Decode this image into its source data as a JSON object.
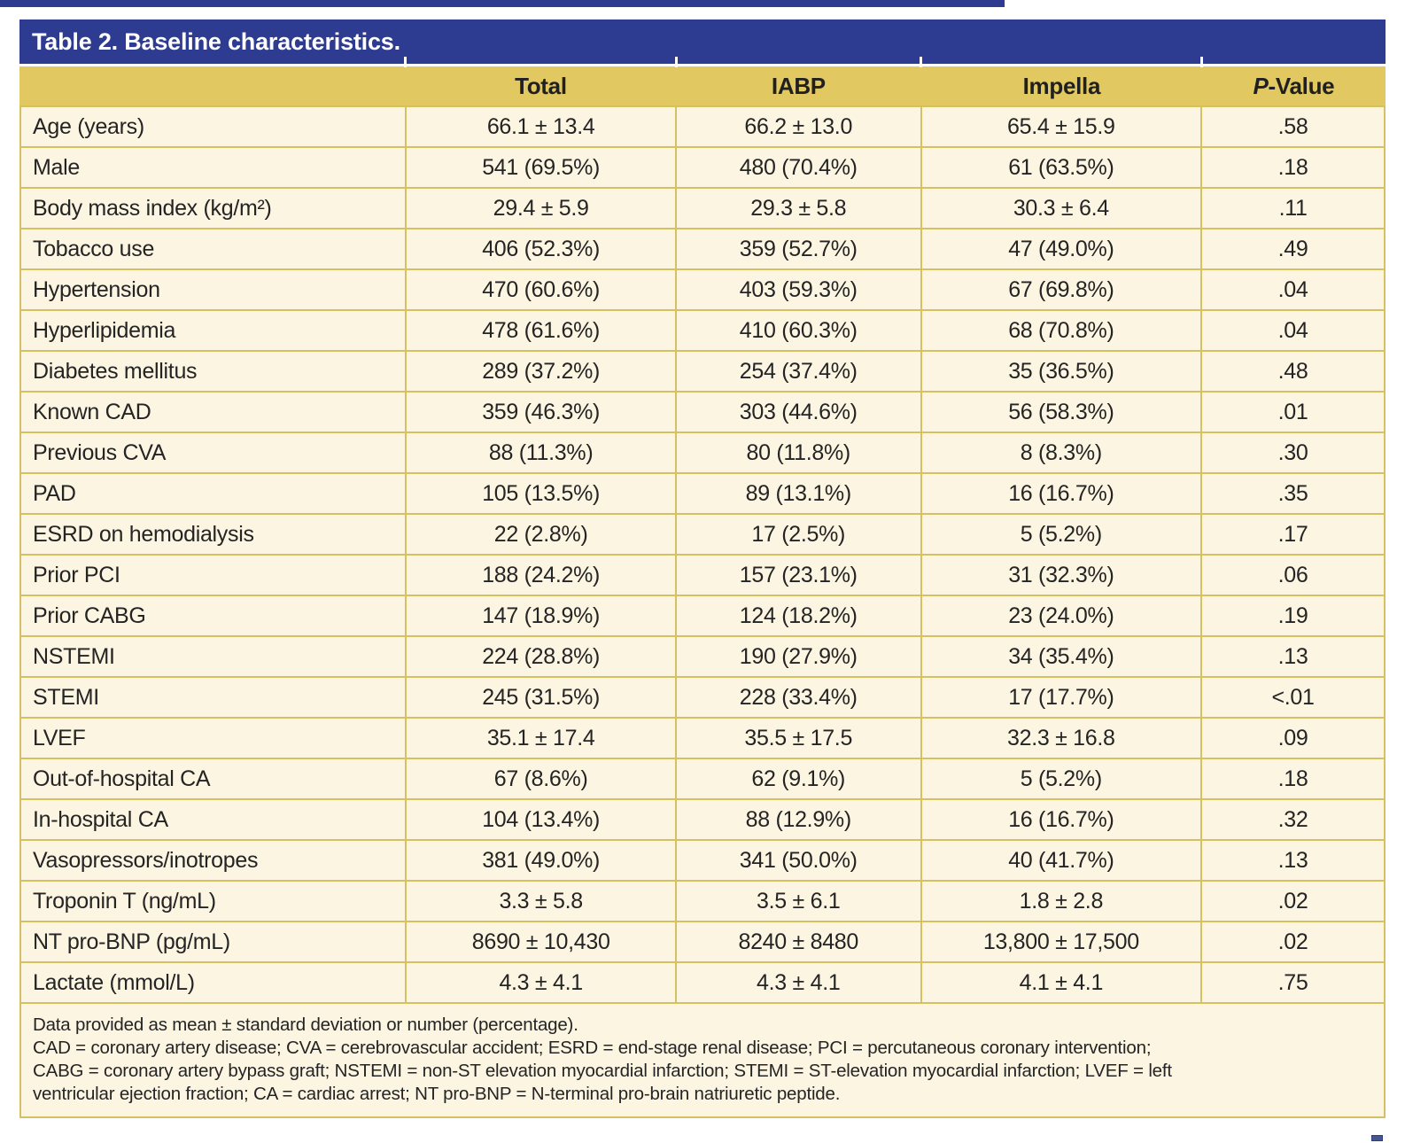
{
  "colors": {
    "accent_blue": "#2d3b90",
    "header_gold": "#e2c860",
    "border_gold": "#d6c162",
    "row_cream": "#fcf5e2"
  },
  "table": {
    "title": "Table 2. Baseline characteristics.",
    "headers": {
      "label": "",
      "total": "Total",
      "iabp": "IABP",
      "impella": "Impella",
      "p_italic": "P",
      "p_rest": "-Value"
    },
    "rows": [
      {
        "label": "Age (years)",
        "total": "66.1 ± 13.4",
        "iabp": "66.2 ± 13.0",
        "impella": "65.4 ± 15.9",
        "p": ".58"
      },
      {
        "label": "Male",
        "total": "541 (69.5%)",
        "iabp": "480 (70.4%)",
        "impella": "61 (63.5%)",
        "p": ".18"
      },
      {
        "label": "Body mass index (kg/m²)",
        "total": "29.4 ± 5.9",
        "iabp": "29.3 ± 5.8",
        "impella": "30.3 ± 6.4",
        "p": ".11"
      },
      {
        "label": "Tobacco use",
        "total": "406 (52.3%)",
        "iabp": "359 (52.7%)",
        "impella": "47 (49.0%)",
        "p": ".49"
      },
      {
        "label": "Hypertension",
        "total": "470 (60.6%)",
        "iabp": "403 (59.3%)",
        "impella": "67 (69.8%)",
        "p": ".04"
      },
      {
        "label": "Hyperlipidemia",
        "total": "478 (61.6%)",
        "iabp": "410 (60.3%)",
        "impella": "68 (70.8%)",
        "p": ".04"
      },
      {
        "label": "Diabetes mellitus",
        "total": "289 (37.2%)",
        "iabp": "254 (37.4%)",
        "impella": "35 (36.5%)",
        "p": ".48"
      },
      {
        "label": "Known CAD",
        "total": "359 (46.3%)",
        "iabp": "303 (44.6%)",
        "impella": "56 (58.3%)",
        "p": ".01"
      },
      {
        "label": "Previous CVA",
        "total": "88 (11.3%)",
        "iabp": "80 (11.8%)",
        "impella": "8 (8.3%)",
        "p": ".30"
      },
      {
        "label": "PAD",
        "total": "105 (13.5%)",
        "iabp": "89 (13.1%)",
        "impella": "16 (16.7%)",
        "p": ".35"
      },
      {
        "label": "ESRD on hemodialysis",
        "total": "22 (2.8%)",
        "iabp": "17 (2.5%)",
        "impella": "5 (5.2%)",
        "p": ".17"
      },
      {
        "label": "Prior PCI",
        "total": "188 (24.2%)",
        "iabp": "157 (23.1%)",
        "impella": "31 (32.3%)",
        "p": ".06"
      },
      {
        "label": "Prior CABG",
        "total": "147 (18.9%)",
        "iabp": "124 (18.2%)",
        "impella": "23 (24.0%)",
        "p": ".19"
      },
      {
        "label": "NSTEMI",
        "total": "224 (28.8%)",
        "iabp": "190 (27.9%)",
        "impella": "34 (35.4%)",
        "p": ".13"
      },
      {
        "label": "STEMI",
        "total": "245 (31.5%)",
        "iabp": "228 (33.4%)",
        "impella": "17 (17.7%)",
        "p": "<.01"
      },
      {
        "label": "LVEF",
        "total": "35.1 ± 17.4",
        "iabp": "35.5 ± 17.5",
        "impella": "32.3 ± 16.8",
        "p": ".09"
      },
      {
        "label": "Out-of-hospital CA",
        "total": "67 (8.6%)",
        "iabp": "62 (9.1%)",
        "impella": "5 (5.2%)",
        "p": ".18"
      },
      {
        "label": "In-hospital CA",
        "total": "104 (13.4%)",
        "iabp": "88 (12.9%)",
        "impella": "16 (16.7%)",
        "p": ".32"
      },
      {
        "label": "Vasopressors/inotropes",
        "total": "381 (49.0%)",
        "iabp": "341 (50.0%)",
        "impella": "40 (41.7%)",
        "p": ".13"
      },
      {
        "label": "Troponin T (ng/mL)",
        "total": "3.3 ± 5.8",
        "iabp": "3.5 ± 6.1",
        "impella": "1.8 ± 2.8",
        "p": ".02"
      },
      {
        "label": "NT pro-BNP (pg/mL)",
        "total": "8690 ± 10,430",
        "iabp": "8240 ± 8480",
        "impella": "13,800 ± 17,500",
        "p": ".02"
      },
      {
        "label": "Lactate (mmol/L)",
        "total": "4.3 ± 4.1",
        "iabp": "4.3 ± 4.1",
        "impella": "4.1 ± 4.1",
        "p": ".75"
      }
    ],
    "footnote_lines": [
      "Data provided as mean ± standard deviation or number (percentage).",
      "CAD = coronary artery disease; CVA = cerebrovascular accident; ESRD = end-stage renal disease; PCI = percutaneous coronary intervention;",
      "CABG = coronary artery bypass graft; NSTEMI = non-ST elevation myocardial infarction; STEMI = ST-elevation myocardial infarction; LVEF = left",
      "ventricular ejection fraction; CA = cardiac arrest; NT pro-BNP = N-terminal pro-brain natriuretic peptide."
    ]
  }
}
